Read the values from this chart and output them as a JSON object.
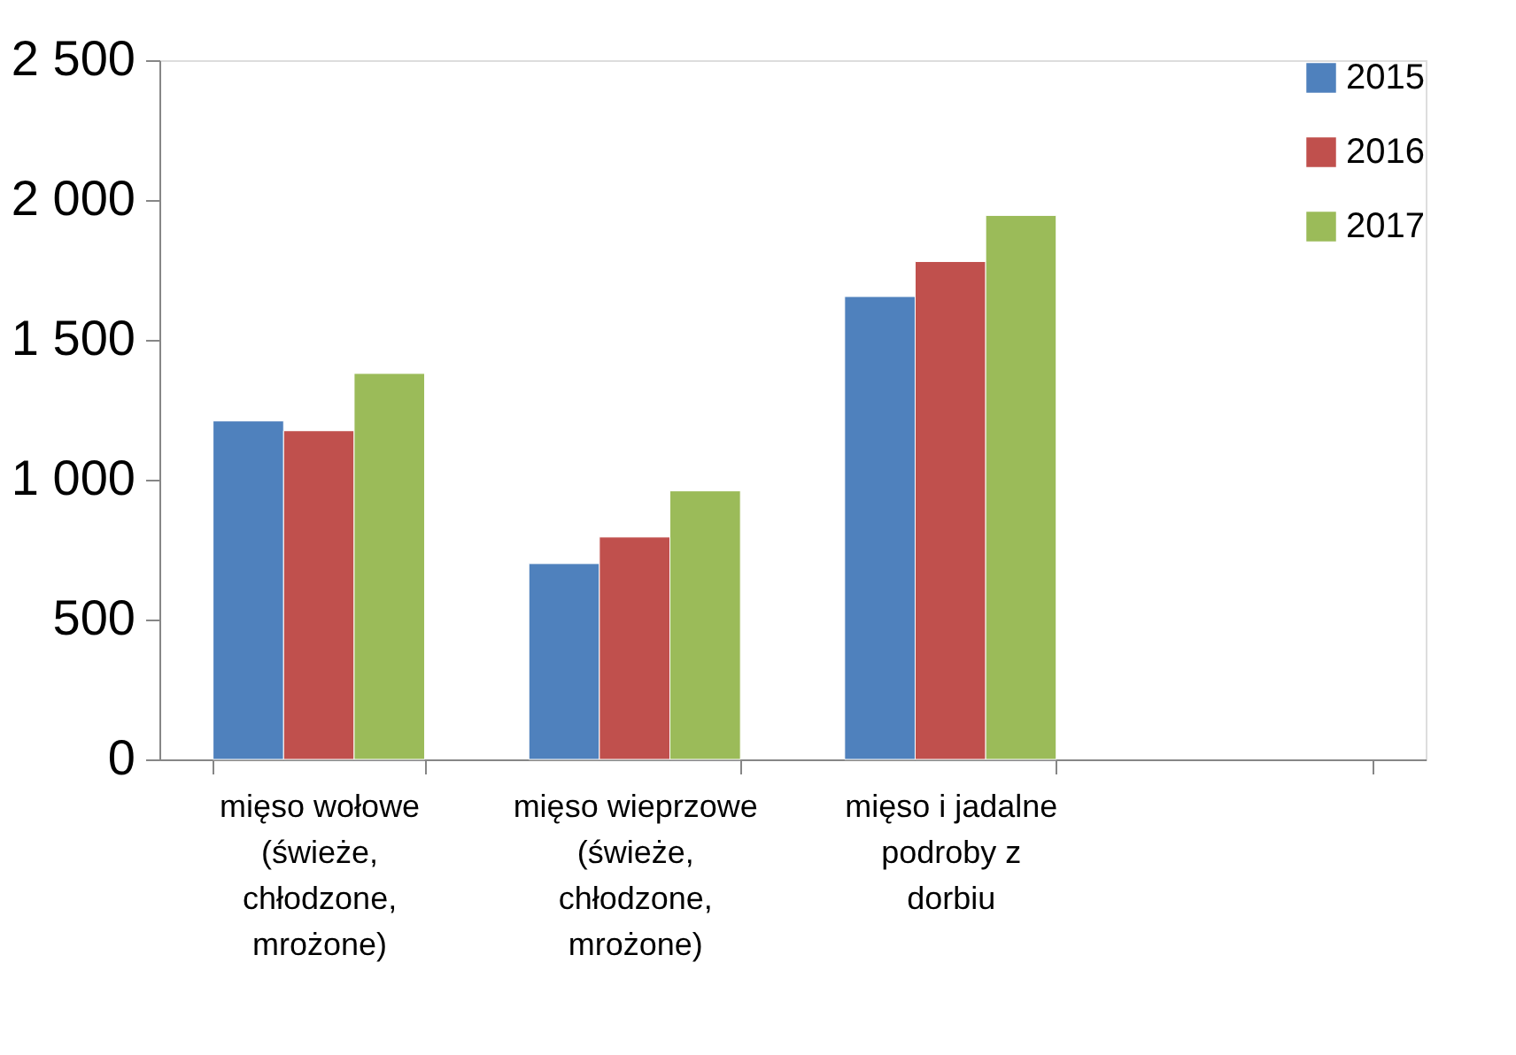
{
  "chart_data": {
    "type": "bar",
    "categories": [
      "mięso wołowe (świeże, chłodzone, mrożone)",
      "mięso wieprzowe (świeże, chłodzone, mrożone)",
      "mięso i jadalne podroby z dorbiu",
      null
    ],
    "series": [
      {
        "name": "2015",
        "color": "#4f81bd",
        "values": [
          1210,
          700,
          1655,
          null
        ]
      },
      {
        "name": "2016",
        "color": "#c0504d",
        "values": [
          1175,
          795,
          1780,
          null
        ]
      },
      {
        "name": "2017",
        "color": "#9bbb59",
        "values": [
          1380,
          960,
          1945,
          null
        ]
      }
    ],
    "ylim": [
      0,
      2500
    ],
    "yticks": [
      {
        "value": 0,
        "label": "0"
      },
      {
        "value": 500,
        "label": "500"
      },
      {
        "value": 1000,
        "label": "1 000"
      },
      {
        "value": 1500,
        "label": "1 500"
      },
      {
        "value": 2000,
        "label": "2 000"
      },
      {
        "value": 2500,
        "label": "2 500"
      }
    ],
    "grid": false,
    "legend": "top right"
  }
}
